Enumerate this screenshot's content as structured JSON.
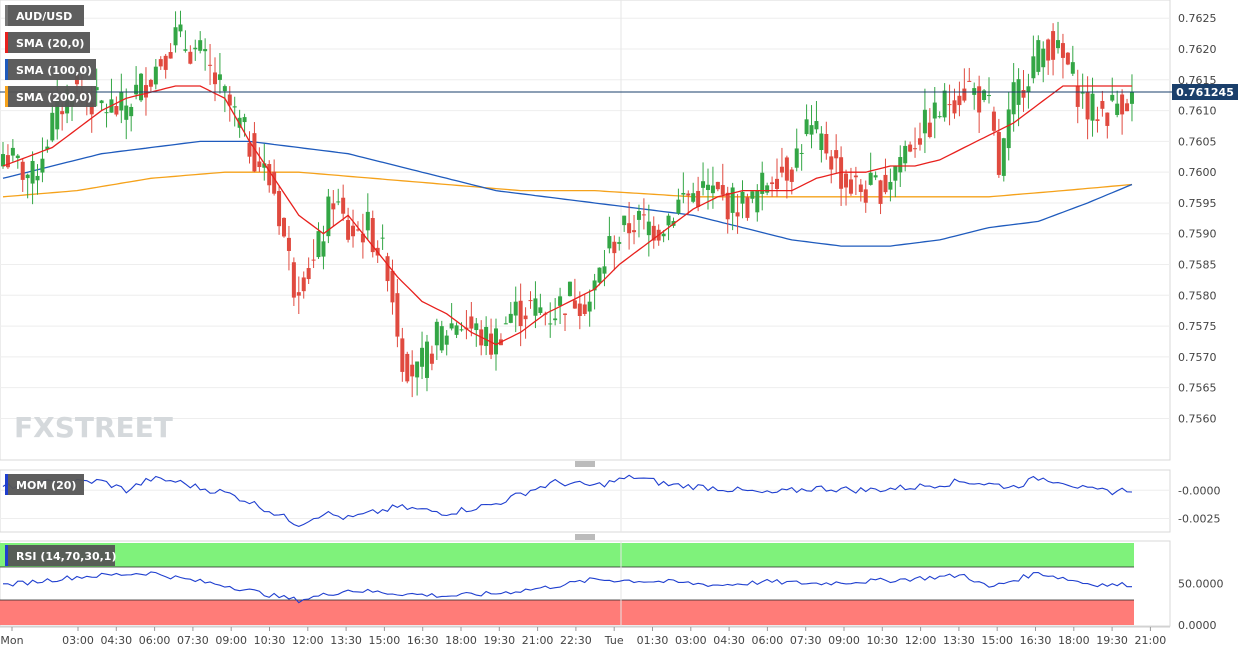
{
  "chart_data": [
    {
      "type": "candlestick",
      "title": "AUD/USD",
      "watermark": "FXSTREET",
      "ylim": [
        0.75565,
        0.76265
      ],
      "yticks": [
        "0.7625",
        "0.7620",
        "0.7615",
        "0.7610",
        "0.7605",
        "0.7600",
        "0.7595",
        "0.7590",
        "0.7585",
        "0.7580",
        "0.7575",
        "0.7570",
        "0.7565",
        "0.7560"
      ],
      "last_price": "0.761245",
      "xticks": [
        "Mon",
        "03:00",
        "04:30",
        "06:00",
        "07:30",
        "09:00",
        "10:30",
        "12:00",
        "13:30",
        "15:00",
        "16:30",
        "18:00",
        "19:30",
        "21:00",
        "22:30",
        "Tue",
        "01:30",
        "03:00",
        "04:30",
        "06:00",
        "07:30",
        "09:00",
        "10:30",
        "12:00",
        "13:30",
        "15:00",
        "16:30",
        "18:00",
        "19:30",
        "21:00"
      ],
      "legend": [
        {
          "name": "SMA (20,0)",
          "color": "#e8201d"
        },
        {
          "name": "SMA (100,0)",
          "color": "#1f5bbd"
        },
        {
          "name": "SMA (200,0)",
          "color": "#f5a21b"
        }
      ],
      "colors": {
        "up": "#33a645",
        "down": "#e04a3f",
        "sma20": "#e8201d",
        "sma100": "#1f5bbd",
        "sma200": "#f5a21b"
      },
      "close_anchors": [
        [
          0,
          0.7603
        ],
        [
          6,
          0.7599
        ],
        [
          10,
          0.7608
        ],
        [
          14,
          0.7614
        ],
        [
          19,
          0.7611
        ],
        [
          24,
          0.761
        ],
        [
          30,
          0.7616
        ],
        [
          35,
          0.7622
        ],
        [
          40,
          0.7619
        ],
        [
          45,
          0.7612
        ],
        [
          51,
          0.7603
        ],
        [
          55,
          0.7597
        ],
        [
          59,
          0.7582
        ],
        [
          63,
          0.7585
        ],
        [
          67,
          0.7596
        ],
        [
          70,
          0.759
        ],
        [
          74,
          0.7591
        ],
        [
          78,
          0.7585
        ],
        [
          81,
          0.757
        ],
        [
          84,
          0.7567
        ],
        [
          88,
          0.7573
        ],
        [
          92,
          0.7576
        ],
        [
          96,
          0.7574
        ],
        [
          99,
          0.7572
        ],
        [
          103,
          0.7577
        ],
        [
          107,
          0.7578
        ],
        [
          111,
          0.7577
        ],
        [
          115,
          0.758
        ],
        [
          119,
          0.7579
        ],
        [
          123,
          0.7588
        ],
        [
          128,
          0.7592
        ],
        [
          133,
          0.7591
        ],
        [
          138,
          0.7596
        ],
        [
          143,
          0.7597
        ],
        [
          147,
          0.7595
        ],
        [
          152,
          0.7595
        ],
        [
          156,
          0.76
        ],
        [
          160,
          0.7601
        ],
        [
          163,
          0.7607
        ],
        [
          167,
          0.7604
        ],
        [
          171,
          0.7598
        ],
        [
          175,
          0.7597
        ],
        [
          179,
          0.7598
        ],
        [
          183,
          0.7604
        ],
        [
          188,
          0.7608
        ],
        [
          192,
          0.7612
        ],
        [
          196,
          0.7614
        ],
        [
          200,
          0.761
        ],
        [
          202,
          0.76
        ],
        [
          205,
          0.7612
        ],
        [
          209,
          0.7618
        ],
        [
          212,
          0.7621
        ],
        [
          216,
          0.7617
        ],
        [
          220,
          0.761
        ],
        [
          224,
          0.761
        ],
        [
          227,
          0.7612
        ],
        [
          229,
          0.7612
        ]
      ],
      "sma20_anchors": [
        [
          0,
          0.7601
        ],
        [
          10,
          0.7604
        ],
        [
          20,
          0.761
        ],
        [
          25,
          0.7612
        ],
        [
          35,
          0.7614
        ],
        [
          40,
          0.7614
        ],
        [
          45,
          0.7612
        ],
        [
          50,
          0.7605
        ],
        [
          55,
          0.7599
        ],
        [
          60,
          0.7593
        ],
        [
          65,
          0.759
        ],
        [
          70,
          0.7593
        ],
        [
          75,
          0.7588
        ],
        [
          80,
          0.7583
        ],
        [
          85,
          0.7579
        ],
        [
          90,
          0.7577
        ],
        [
          95,
          0.7574
        ],
        [
          100,
          0.7572
        ],
        [
          105,
          0.7574
        ],
        [
          110,
          0.7577
        ],
        [
          115,
          0.7579
        ],
        [
          120,
          0.7581
        ],
        [
          125,
          0.7585
        ],
        [
          130,
          0.7588
        ],
        [
          135,
          0.7591
        ],
        [
          140,
          0.7594
        ],
        [
          145,
          0.7596
        ],
        [
          150,
          0.7597
        ],
        [
          155,
          0.7597
        ],
        [
          160,
          0.7597
        ],
        [
          165,
          0.7599
        ],
        [
          170,
          0.76
        ],
        [
          175,
          0.76
        ],
        [
          180,
          0.7601
        ],
        [
          185,
          0.7601
        ],
        [
          190,
          0.7602
        ],
        [
          195,
          0.7604
        ],
        [
          200,
          0.7606
        ],
        [
          205,
          0.7608
        ],
        [
          210,
          0.7611
        ],
        [
          215,
          0.7614
        ],
        [
          220,
          0.7614
        ],
        [
          225,
          0.7614
        ],
        [
          229,
          0.7614
        ]
      ],
      "sma100_anchors": [
        [
          0,
          0.7599
        ],
        [
          10,
          0.7601
        ],
        [
          20,
          0.7603
        ],
        [
          30,
          0.7604
        ],
        [
          40,
          0.7605
        ],
        [
          50,
          0.7605
        ],
        [
          60,
          0.7604
        ],
        [
          70,
          0.7603
        ],
        [
          80,
          0.7601
        ],
        [
          90,
          0.7599
        ],
        [
          100,
          0.7597
        ],
        [
          110,
          0.7596
        ],
        [
          120,
          0.7595
        ],
        [
          130,
          0.7594
        ],
        [
          140,
          0.7593
        ],
        [
          150,
          0.7591
        ],
        [
          160,
          0.7589
        ],
        [
          170,
          0.7588
        ],
        [
          180,
          0.7588
        ],
        [
          190,
          0.7589
        ],
        [
          200,
          0.7591
        ],
        [
          210,
          0.7592
        ],
        [
          220,
          0.7595
        ],
        [
          229,
          0.7598
        ]
      ],
      "sma200_anchors": [
        [
          0,
          0.7596
        ],
        [
          15,
          0.7597
        ],
        [
          30,
          0.7599
        ],
        [
          45,
          0.76
        ],
        [
          60,
          0.76
        ],
        [
          75,
          0.7599
        ],
        [
          90,
          0.7598
        ],
        [
          105,
          0.7597
        ],
        [
          120,
          0.7597
        ],
        [
          140,
          0.7596
        ],
        [
          160,
          0.7596
        ],
        [
          180,
          0.7596
        ],
        [
          200,
          0.7596
        ],
        [
          215,
          0.7597
        ],
        [
          229,
          0.7598
        ]
      ]
    },
    {
      "type": "line",
      "name": "MOM (20)",
      "yticks": [
        "-0.0000",
        "-0.0025"
      ],
      "ylim": [
        -0.0037,
        0.0018
      ],
      "color": "#1f3fcf",
      "anchors": [
        [
          0,
          0.0003
        ],
        [
          10,
          0.0007
        ],
        [
          20,
          0.0008
        ],
        [
          25,
          0.0
        ],
        [
          30,
          0.001
        ],
        [
          35,
          0.0008
        ],
        [
          40,
          0.0002
        ],
        [
          45,
          -0.0002
        ],
        [
          50,
          -0.001
        ],
        [
          55,
          -0.002
        ],
        [
          60,
          -0.003
        ],
        [
          65,
          -0.002
        ],
        [
          70,
          -0.0025
        ],
        [
          80,
          -0.0015
        ],
        [
          90,
          -0.002
        ],
        [
          100,
          -0.0012
        ],
        [
          107,
          0.0
        ],
        [
          112,
          0.0007
        ],
        [
          120,
          0.0004
        ],
        [
          128,
          0.0012
        ],
        [
          135,
          0.0005
        ],
        [
          145,
          0.0002
        ],
        [
          155,
          -0.0003
        ],
        [
          165,
          0.0002
        ],
        [
          175,
          0.0
        ],
        [
          185,
          0.0003
        ],
        [
          195,
          0.0008
        ],
        [
          205,
          0.0003
        ],
        [
          210,
          0.0011
        ],
        [
          215,
          0.0008
        ],
        [
          220,
          0.0
        ],
        [
          225,
          -0.0001
        ],
        [
          229,
          0.0001
        ]
      ]
    },
    {
      "type": "line",
      "name": "RSI (14,70,30,1)",
      "yticks": [
        "50.0000",
        "0.0000"
      ],
      "ylim": [
        0,
        100
      ],
      "overbought": 70,
      "oversold": 30,
      "color": "#1f3fcf",
      "zone_colors": {
        "overbought": "#7ff27b",
        "oversold": "#ff7c78"
      },
      "anchors": [
        [
          0,
          48
        ],
        [
          15,
          58
        ],
        [
          30,
          63
        ],
        [
          37,
          55
        ],
        [
          45,
          48
        ],
        [
          55,
          35
        ],
        [
          60,
          30
        ],
        [
          70,
          42
        ],
        [
          80,
          38
        ],
        [
          90,
          35
        ],
        [
          100,
          38
        ],
        [
          110,
          45
        ],
        [
          120,
          55
        ],
        [
          135,
          52
        ],
        [
          145,
          48
        ],
        [
          155,
          52
        ],
        [
          165,
          50
        ],
        [
          180,
          54
        ],
        [
          195,
          60
        ],
        [
          200,
          45
        ],
        [
          210,
          63
        ],
        [
          220,
          50
        ],
        [
          225,
          48
        ],
        [
          229,
          49
        ]
      ]
    }
  ]
}
